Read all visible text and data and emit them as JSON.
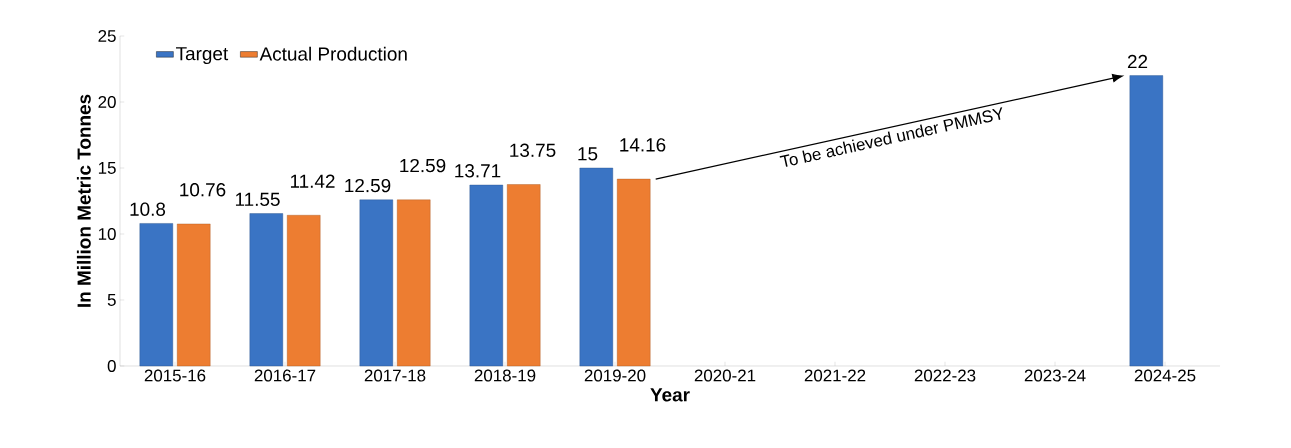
{
  "chart_data": {
    "type": "bar",
    "xlabel": "Year",
    "ylabel": "In Million Metric Tonnes",
    "categories": [
      "2015-16",
      "2016-17",
      "2017-18",
      "2018-19",
      "2019-20",
      "2020-21",
      "2021-22",
      "2022-23",
      "2023-24",
      "2024-25"
    ],
    "series": [
      {
        "name": "Target",
        "color": "#3a74c4",
        "values": [
          10.8,
          11.55,
          12.59,
          13.71,
          15,
          null,
          null,
          null,
          null,
          22
        ]
      },
      {
        "name": "Actual Production",
        "color": "#ed7d31",
        "values": [
          10.76,
          11.42,
          12.59,
          13.75,
          14.16,
          null,
          null,
          null,
          null,
          null
        ]
      }
    ],
    "ylim": [
      0,
      25
    ],
    "yticks": [
      0,
      5,
      10,
      15,
      20,
      25
    ],
    "data_labels": true,
    "legend": "top left",
    "annotations": [
      "To be achieved under PMMSY"
    ]
  }
}
